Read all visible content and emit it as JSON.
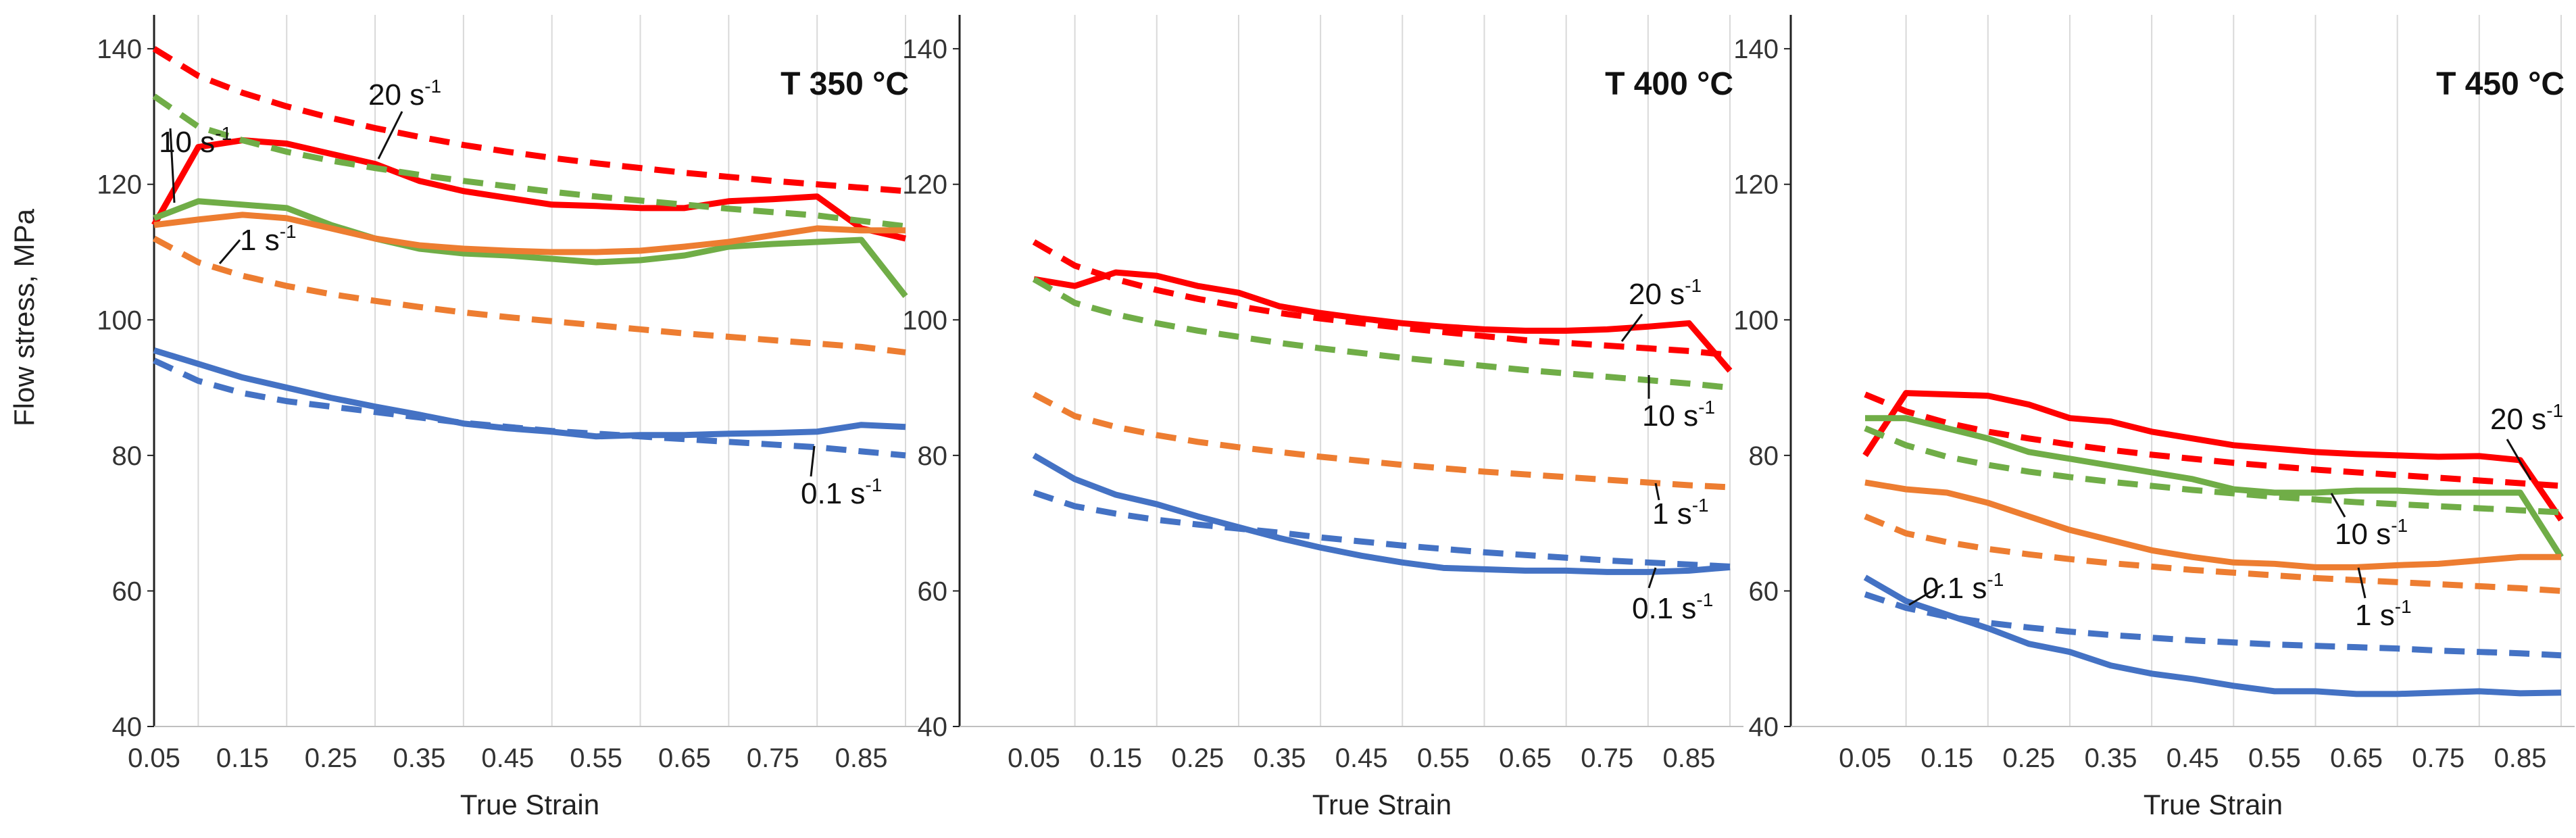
{
  "figure": {
    "ylabel": "Flow stress, MPa"
  },
  "chart_data": [
    {
      "type": "line",
      "title": "T 350 °C",
      "xlabel": "True Strain",
      "ylabel": "Flow stress, MPa",
      "xticks": [
        "0.05",
        "0.15",
        "0.25",
        "0.35",
        "0.45",
        "0.55",
        "0.65",
        "0.75",
        "0.85"
      ],
      "yticks": [
        "40",
        "60",
        "80",
        "100",
        "120",
        "140"
      ],
      "xlim": [
        0.05,
        0.9
      ],
      "ylim": [
        40,
        145
      ],
      "grid": "vertical",
      "series": [
        {
          "color": "#ff0000",
          "dash": true,
          "x": [
            0.05,
            0.1,
            0.15,
            0.2,
            0.25,
            0.3,
            0.35,
            0.4,
            0.45,
            0.5,
            0.55,
            0.6,
            0.65,
            0.7,
            0.75,
            0.8,
            0.85,
            0.9
          ],
          "y": [
            140,
            136,
            133.5,
            131.5,
            129.8,
            128.3,
            127,
            125.8,
            124.8,
            123.9,
            123.1,
            122.4,
            121.7,
            121.1,
            120.5,
            120,
            119.5,
            119
          ]
        },
        {
          "color": "#ff0000",
          "dash": false,
          "x": [
            0.05,
            0.1,
            0.15,
            0.2,
            0.25,
            0.3,
            0.35,
            0.4,
            0.45,
            0.5,
            0.55,
            0.6,
            0.65,
            0.7,
            0.75,
            0.8,
            0.85,
            0.9
          ],
          "y": [
            114,
            125.5,
            126.5,
            126,
            124.5,
            123,
            120.5,
            119,
            118,
            117,
            116.8,
            116.5,
            116.5,
            117.5,
            117.8,
            118.2,
            113.5,
            112
          ]
        },
        {
          "color": "#70ad47",
          "dash": true,
          "x": [
            0.05,
            0.1,
            0.15,
            0.2,
            0.25,
            0.3,
            0.35,
            0.4,
            0.45,
            0.5,
            0.55,
            0.6,
            0.65,
            0.7,
            0.75,
            0.8,
            0.85,
            0.9
          ],
          "y": [
            133,
            128.5,
            126.5,
            124.8,
            123.5,
            122.4,
            121.4,
            120.5,
            119.7,
            118.9,
            118.2,
            117.6,
            117,
            116.4,
            115.9,
            115.4,
            114.6,
            113.8
          ]
        },
        {
          "color": "#70ad47",
          "dash": false,
          "x": [
            0.05,
            0.1,
            0.15,
            0.2,
            0.25,
            0.3,
            0.35,
            0.4,
            0.45,
            0.5,
            0.55,
            0.6,
            0.65,
            0.7,
            0.75,
            0.8,
            0.85,
            0.9
          ],
          "y": [
            115,
            117.5,
            117,
            116.5,
            114,
            112,
            110.5,
            109.8,
            109.5,
            109,
            108.5,
            108.8,
            109.5,
            110.8,
            111.2,
            111.5,
            111.8,
            103.5
          ]
        },
        {
          "color": "#ed7d31",
          "dash": false,
          "x": [
            0.05,
            0.1,
            0.15,
            0.2,
            0.25,
            0.3,
            0.35,
            0.4,
            0.45,
            0.5,
            0.55,
            0.6,
            0.65,
            0.7,
            0.75,
            0.8,
            0.85,
            0.9
          ],
          "y": [
            114,
            114.8,
            115.5,
            115,
            113.5,
            112,
            111,
            110.5,
            110.2,
            110,
            110,
            110.2,
            110.8,
            111.5,
            112.5,
            113.5,
            113.2,
            113.2
          ]
        },
        {
          "color": "#ed7d31",
          "dash": true,
          "x": [
            0.05,
            0.1,
            0.15,
            0.2,
            0.25,
            0.3,
            0.35,
            0.4,
            0.45,
            0.5,
            0.55,
            0.6,
            0.65,
            0.7,
            0.75,
            0.8,
            0.85,
            0.9
          ],
          "y": [
            112,
            108.5,
            106.5,
            105,
            103.8,
            102.8,
            101.9,
            101.1,
            100.4,
            99.8,
            99.2,
            98.6,
            98,
            97.5,
            97,
            96.5,
            96,
            95.2
          ]
        },
        {
          "color": "#4472c4",
          "dash": false,
          "x": [
            0.05,
            0.1,
            0.15,
            0.2,
            0.25,
            0.3,
            0.35,
            0.4,
            0.45,
            0.5,
            0.55,
            0.6,
            0.65,
            0.7,
            0.75,
            0.8,
            0.85,
            0.9
          ],
          "y": [
            95.5,
            93.5,
            91.5,
            90,
            88.5,
            87.2,
            86,
            84.7,
            84,
            83.5,
            82.8,
            83,
            83,
            83.2,
            83.3,
            83.5,
            84.5,
            84.2
          ]
        },
        {
          "color": "#4472c4",
          "dash": true,
          "x": [
            0.05,
            0.1,
            0.15,
            0.2,
            0.25,
            0.3,
            0.35,
            0.4,
            0.45,
            0.5,
            0.55,
            0.6,
            0.65,
            0.7,
            0.75,
            0.8,
            0.85,
            0.9
          ],
          "y": [
            94,
            91,
            89.2,
            88,
            87.2,
            86.4,
            85.6,
            84.8,
            84.2,
            83.6,
            83.2,
            82.8,
            82.4,
            82,
            81.6,
            81.2,
            80.6,
            80
          ]
        }
      ],
      "annotations": [
        {
          "base": "20",
          "sup": " s",
          "exp": "-1"
        },
        {
          "base": "10",
          "sup": " s",
          "exp": "-1"
        },
        {
          "base": "1",
          "sup": " s",
          "exp": "-1"
        },
        {
          "base": "0.1",
          "sup": " s",
          "exp": "-1"
        }
      ]
    },
    {
      "type": "line",
      "title": "T 400 °C",
      "xlabel": "True Strain",
      "xticks": [
        "0.05",
        "0.15",
        "0.25",
        "0.35",
        "0.45",
        "0.55",
        "0.65",
        "0.75",
        "0.85"
      ],
      "yticks": [
        "40",
        "60",
        "80",
        "100",
        "120",
        "140"
      ],
      "xlim": [
        0.05,
        0.9
      ],
      "ylim": [
        40,
        145
      ],
      "grid": "vertical",
      "series": [
        {
          "color": "#ff0000",
          "dash": true,
          "x": [
            0.05,
            0.1,
            0.15,
            0.2,
            0.25,
            0.3,
            0.35,
            0.4,
            0.45,
            0.5,
            0.55,
            0.6,
            0.65,
            0.7,
            0.75,
            0.8,
            0.85,
            0.9
          ],
          "y": [
            111.5,
            108,
            106,
            104.4,
            103.1,
            102,
            101,
            100.2,
            99.5,
            98.8,
            98.2,
            97.6,
            97,
            96.6,
            96.2,
            95.8,
            95.4,
            94.8
          ]
        },
        {
          "color": "#ff0000",
          "dash": false,
          "x": [
            0.05,
            0.1,
            0.15,
            0.2,
            0.25,
            0.3,
            0.35,
            0.4,
            0.45,
            0.5,
            0.55,
            0.6,
            0.65,
            0.7,
            0.75,
            0.8,
            0.85,
            0.9
          ],
          "y": [
            106,
            105,
            107,
            106.5,
            105,
            104,
            102,
            101,
            100.2,
            99.5,
            99,
            98.6,
            98.4,
            98.4,
            98.6,
            99,
            99.5,
            92.5
          ]
        },
        {
          "color": "#70ad47",
          "dash": true,
          "x": [
            0.05,
            0.1,
            0.15,
            0.2,
            0.25,
            0.3,
            0.35,
            0.4,
            0.45,
            0.5,
            0.55,
            0.6,
            0.65,
            0.7,
            0.75,
            0.8,
            0.85,
            0.9
          ],
          "y": [
            106,
            102.5,
            100.8,
            99.5,
            98.4,
            97.5,
            96.6,
            95.8,
            95.1,
            94.4,
            93.8,
            93.2,
            92.6,
            92.1,
            91.6,
            91.1,
            90.6,
            90
          ]
        },
        {
          "color": "#ed7d31",
          "dash": true,
          "x": [
            0.05,
            0.1,
            0.15,
            0.2,
            0.25,
            0.3,
            0.35,
            0.4,
            0.45,
            0.5,
            0.55,
            0.6,
            0.65,
            0.7,
            0.75,
            0.8,
            0.85,
            0.9
          ],
          "y": [
            89,
            85.8,
            84.2,
            83,
            82,
            81.2,
            80.5,
            79.8,
            79.2,
            78.6,
            78.1,
            77.6,
            77.2,
            76.8,
            76.4,
            76,
            75.6,
            75.3
          ]
        },
        {
          "color": "#4472c4",
          "dash": false,
          "x": [
            0.05,
            0.1,
            0.15,
            0.2,
            0.25,
            0.3,
            0.35,
            0.4,
            0.45,
            0.5,
            0.55,
            0.6,
            0.65,
            0.7,
            0.75,
            0.8,
            0.85,
            0.9
          ],
          "y": [
            80,
            76.5,
            74.2,
            72.8,
            71,
            69.4,
            67.8,
            66.4,
            65.2,
            64.2,
            63.4,
            63.2,
            63,
            63,
            62.8,
            62.8,
            63,
            63.5
          ]
        },
        {
          "color": "#4472c4",
          "dash": true,
          "x": [
            0.05,
            0.1,
            0.15,
            0.2,
            0.25,
            0.3,
            0.35,
            0.4,
            0.45,
            0.5,
            0.55,
            0.6,
            0.65,
            0.7,
            0.75,
            0.8,
            0.85,
            0.9
          ],
          "y": [
            74.5,
            72.5,
            71.4,
            70.5,
            69.8,
            69.2,
            68.6,
            67.9,
            67.3,
            66.7,
            66.2,
            65.7,
            65.3,
            64.9,
            64.5,
            64.2,
            63.9,
            63.6
          ]
        }
      ],
      "annotations": [
        {
          "base": "20",
          "sup": " s",
          "exp": "-1"
        },
        {
          "base": "10",
          "sup": " s",
          "exp": "-1"
        },
        {
          "base": "1",
          "sup": " s",
          "exp": "-1"
        },
        {
          "base": "0.1",
          "sup": " s",
          "exp": "-1"
        }
      ]
    },
    {
      "type": "line",
      "title": "T 450 °C",
      "xlabel": "True Strain",
      "xticks": [
        "0.05",
        "0.15",
        "0.25",
        "0.35",
        "0.45",
        "0.55",
        "0.65",
        "0.75",
        "0.85"
      ],
      "yticks": [
        "40",
        "60",
        "80",
        "100",
        "120",
        "140"
      ],
      "xlim": [
        0.05,
        0.9
      ],
      "ylim": [
        40,
        145
      ],
      "grid": "vertical",
      "series": [
        {
          "color": "#ff0000",
          "dash": true,
          "x": [
            0.05,
            0.1,
            0.15,
            0.2,
            0.25,
            0.3,
            0.35,
            0.4,
            0.45,
            0.5,
            0.55,
            0.6,
            0.65,
            0.7,
            0.75,
            0.8,
            0.85,
            0.9
          ],
          "y": [
            89,
            86.5,
            84.8,
            83.5,
            82.5,
            81.6,
            80.8,
            80.1,
            79.5,
            78.9,
            78.4,
            77.9,
            77.5,
            77.1,
            76.7,
            76.3,
            75.9,
            75.5
          ]
        },
        {
          "color": "#ff0000",
          "dash": false,
          "x": [
            0.05,
            0.1,
            0.15,
            0.2,
            0.25,
            0.3,
            0.35,
            0.4,
            0.45,
            0.5,
            0.55,
            0.6,
            0.65,
            0.7,
            0.75,
            0.8,
            0.85,
            0.9
          ],
          "y": [
            80,
            89.2,
            89,
            88.8,
            87.5,
            85.5,
            85,
            83.5,
            82.5,
            81.5,
            81,
            80.5,
            80.2,
            80,
            79.8,
            79.9,
            79.3,
            70.5
          ]
        },
        {
          "color": "#70ad47",
          "dash": true,
          "x": [
            0.05,
            0.1,
            0.15,
            0.2,
            0.25,
            0.3,
            0.35,
            0.4,
            0.45,
            0.5,
            0.55,
            0.6,
            0.65,
            0.7,
            0.75,
            0.8,
            0.85,
            0.9
          ],
          "y": [
            84,
            81.5,
            79.8,
            78.6,
            77.6,
            76.8,
            76.1,
            75.5,
            74.9,
            74.4,
            73.9,
            73.5,
            73.1,
            72.8,
            72.5,
            72.2,
            71.9,
            71.6
          ]
        },
        {
          "color": "#70ad47",
          "dash": false,
          "x": [
            0.05,
            0.1,
            0.15,
            0.2,
            0.25,
            0.3,
            0.35,
            0.4,
            0.45,
            0.5,
            0.55,
            0.6,
            0.65,
            0.7,
            0.75,
            0.8,
            0.85,
            0.9
          ],
          "y": [
            85.5,
            85.5,
            84,
            82.5,
            80.5,
            79.5,
            78.5,
            77.5,
            76.5,
            75,
            74.5,
            74.5,
            74.8,
            74.8,
            74.5,
            74.5,
            74.5,
            65
          ]
        },
        {
          "color": "#ed7d31",
          "dash": false,
          "x": [
            0.05,
            0.1,
            0.15,
            0.2,
            0.25,
            0.3,
            0.35,
            0.4,
            0.45,
            0.5,
            0.55,
            0.6,
            0.65,
            0.7,
            0.75,
            0.8,
            0.85,
            0.9
          ],
          "y": [
            76,
            75,
            74.5,
            73,
            71,
            69,
            67.5,
            66,
            65,
            64.2,
            64,
            63.5,
            63.5,
            63.8,
            64,
            64.5,
            65,
            65
          ]
        },
        {
          "color": "#ed7d31",
          "dash": true,
          "x": [
            0.05,
            0.1,
            0.15,
            0.2,
            0.25,
            0.3,
            0.35,
            0.4,
            0.45,
            0.5,
            0.55,
            0.6,
            0.65,
            0.7,
            0.75,
            0.8,
            0.85,
            0.9
          ],
          "y": [
            71,
            68.5,
            67.2,
            66.2,
            65.4,
            64.7,
            64.1,
            63.6,
            63.1,
            62.7,
            62.3,
            61.9,
            61.6,
            61.3,
            61,
            60.7,
            60.4,
            60
          ]
        },
        {
          "color": "#4472c4",
          "dash": true,
          "x": [
            0.05,
            0.1,
            0.15,
            0.2,
            0.25,
            0.3,
            0.35,
            0.4,
            0.45,
            0.5,
            0.55,
            0.6,
            0.65,
            0.7,
            0.75,
            0.8,
            0.85,
            0.9
          ],
          "y": [
            59.5,
            57.5,
            56.2,
            55.3,
            54.6,
            54,
            53.5,
            53.1,
            52.7,
            52.4,
            52.1,
            51.9,
            51.7,
            51.5,
            51.2,
            51,
            50.8,
            50.5
          ]
        },
        {
          "color": "#4472c4",
          "dash": false,
          "x": [
            0.05,
            0.1,
            0.15,
            0.2,
            0.25,
            0.3,
            0.35,
            0.4,
            0.45,
            0.5,
            0.55,
            0.6,
            0.65,
            0.7,
            0.75,
            0.8,
            0.85,
            0.9
          ],
          "y": [
            62,
            58.5,
            56.5,
            54.5,
            52.2,
            51,
            49,
            47.8,
            47,
            46,
            45.2,
            45.2,
            44.8,
            44.8,
            45,
            45.2,
            44.9,
            45
          ]
        }
      ],
      "annotations": [
        {
          "base": "0.1",
          "sup": " s",
          "exp": "-1"
        },
        {
          "base": "20",
          "sup": " s",
          "exp": "-1"
        },
        {
          "base": "10",
          "sup": " s",
          "exp": "-1"
        },
        {
          "base": "1",
          "sup": " s",
          "exp": "-1"
        }
      ]
    }
  ]
}
